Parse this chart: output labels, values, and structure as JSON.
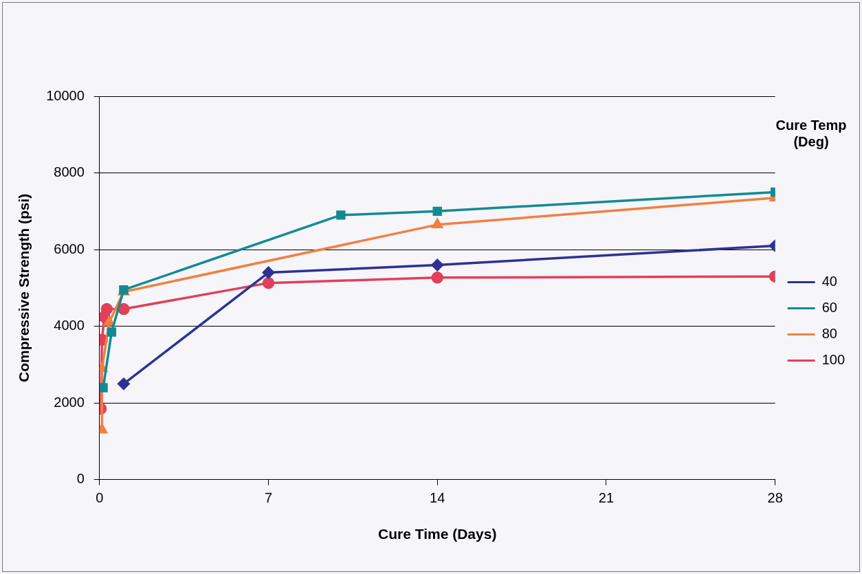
{
  "chart_data": {
    "type": "line",
    "xlabel": "Cure Time (Days)",
    "ylabel": "Compressive Strength (psi)",
    "legend_title": "Cure Temp (Deg)",
    "xlim": [
      0,
      28
    ],
    "xticks": [
      0,
      7,
      14,
      21,
      28
    ],
    "ylim": [
      0,
      10000
    ],
    "yticks": [
      0,
      2000,
      4000,
      6000,
      8000,
      10000
    ],
    "grid": "y",
    "legend": "right",
    "series": [
      {
        "name": "40",
        "color": "#2e3192",
        "marker": "diamond",
        "x": [
          1,
          7,
          14,
          28
        ],
        "values": [
          2500,
          5400,
          5600,
          6100
        ]
      },
      {
        "name": "60",
        "color": "#138a93",
        "marker": "square",
        "x": [
          0.15,
          0.5,
          1,
          10,
          14,
          28
        ],
        "values": [
          2400,
          3850,
          4950,
          6900,
          7000,
          7500
        ]
      },
      {
        "name": "80",
        "color": "#f08040",
        "marker": "triangle",
        "x": [
          0.1,
          0.1,
          0.4,
          1,
          14,
          28
        ],
        "values": [
          1300,
          2900,
          4100,
          4900,
          6650,
          7350
        ]
      },
      {
        "name": "100",
        "color": "#e0405a",
        "marker": "circle",
        "x": [
          0.05,
          0.1,
          0.2,
          0.3,
          1,
          7,
          14,
          28
        ],
        "values": [
          1850,
          3650,
          4250,
          4450,
          4450,
          5130,
          5270,
          5300
        ]
      }
    ]
  }
}
